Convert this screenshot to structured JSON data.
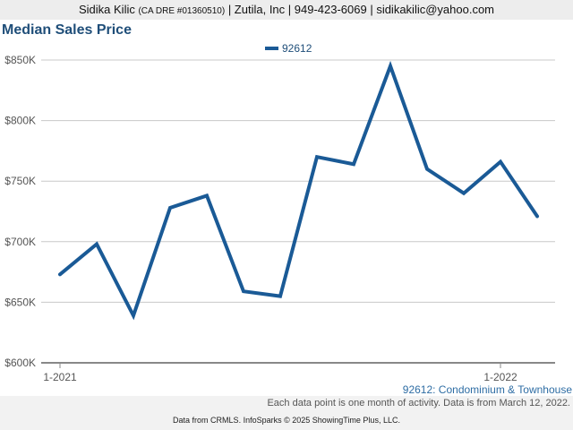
{
  "header": {
    "agent_name": "Sidika Kilic",
    "license": "(CA DRE #01360510)",
    "rest": " | Zutila, Inc | 949-423-6069 | sidikakilic@yahoo.com"
  },
  "chart_data": {
    "type": "line",
    "title": "Median Sales Price",
    "subtitle": "92612: Condominium & Townhouse",
    "xlabel": "",
    "ylabel": "",
    "x": [
      "2021-01",
      "2021-02",
      "2021-03",
      "2021-04",
      "2021-05",
      "2021-06",
      "2021-07",
      "2021-08",
      "2021-09",
      "2021-10",
      "2021-11",
      "2021-12",
      "2022-01",
      "2022-02"
    ],
    "x_ticks": [
      {
        "label": "1-2021",
        "at": "2021-01"
      },
      {
        "label": "1-2022",
        "at": "2022-01"
      }
    ],
    "series": [
      {
        "name": "92612",
        "color": "#1a5a96",
        "values": [
          673000,
          698000,
          639000,
          728000,
          738000,
          659000,
          655000,
          770000,
          764000,
          845000,
          760000,
          740000,
          766000,
          721000
        ]
      }
    ],
    "ylim": [
      600000,
      850000
    ],
    "y_ticks": [
      {
        "value": 600000,
        "label": "$600K"
      },
      {
        "value": 650000,
        "label": "$650K"
      },
      {
        "value": 700000,
        "label": "$700K"
      },
      {
        "value": 750000,
        "label": "$750K"
      },
      {
        "value": 800000,
        "label": "$800K"
      },
      {
        "value": 850000,
        "label": "$850K"
      }
    ],
    "grid": true,
    "legend_position": "top-center"
  },
  "footnote": "Each data point is one month of activity. Data is from March 12, 2022.",
  "credit": "Data from CRMLS. InfoSparks © 2025 ShowingTime Plus, LLC."
}
